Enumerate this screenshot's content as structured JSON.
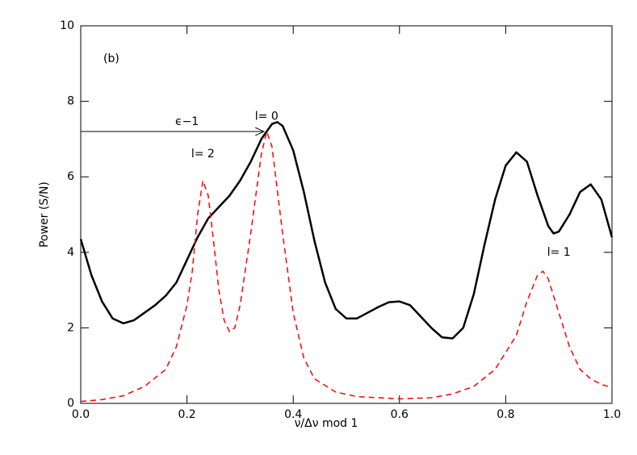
{
  "chart_data": {
    "type": "line",
    "x_label": "ν/Δν mod 1",
    "y_label": "Power (S/N)",
    "panel_label": "(b)",
    "annotations": [
      "ϵ−1",
      "l= 0",
      "l= 2",
      "l= 1"
    ],
    "xlim": [
      0,
      1
    ],
    "ylim": [
      0,
      10
    ],
    "xticks": [
      {
        "value": 0,
        "label": "0.0"
      },
      {
        "value": 0.2,
        "label": "0.2"
      },
      {
        "value": 0.4,
        "label": "0.4"
      },
      {
        "value": 0.6,
        "label": "0.6"
      },
      {
        "value": 0.8,
        "label": "0.8"
      },
      {
        "value": 1,
        "label": "1.0"
      }
    ],
    "yticks": [
      0,
      2,
      4,
      6,
      8,
      10
    ],
    "series": [
      {
        "color": "#000000",
        "style": "solid",
        "x": [
          0,
          0.02,
          0.04,
          0.06,
          0.08,
          0.1,
          0.12,
          0.14,
          0.16,
          0.18,
          0.2,
          0.22,
          0.24,
          0.26,
          0.28,
          0.3,
          0.32,
          0.34,
          0.36,
          0.37,
          0.38,
          0.4,
          0.42,
          0.44,
          0.46,
          0.48,
          0.5,
          0.52,
          0.54,
          0.56,
          0.58,
          0.6,
          0.62,
          0.64,
          0.66,
          0.68,
          0.7,
          0.72,
          0.74,
          0.76,
          0.78,
          0.8,
          0.82,
          0.84,
          0.86,
          0.88,
          0.89,
          0.9,
          0.92,
          0.94,
          0.96,
          0.98,
          1
        ],
        "values": [
          4.35,
          3.4,
          2.7,
          2.25,
          2.12,
          2.2,
          2.4,
          2.6,
          2.85,
          3.2,
          3.8,
          4.4,
          4.9,
          5.2,
          5.5,
          5.9,
          6.4,
          7.0,
          7.4,
          7.45,
          7.35,
          6.7,
          5.6,
          4.3,
          3.2,
          2.5,
          2.25,
          2.25,
          2.4,
          2.55,
          2.68,
          2.7,
          2.6,
          2.3,
          2.0,
          1.75,
          1.72,
          2.0,
          2.9,
          4.2,
          5.4,
          6.3,
          6.65,
          6.4,
          5.5,
          4.7,
          4.5,
          4.55,
          5.0,
          5.6,
          5.8,
          5.4,
          4.4
        ]
      },
      {
        "color": "#ff0000",
        "style": "dashed",
        "x": [
          0,
          0.04,
          0.08,
          0.12,
          0.16,
          0.18,
          0.2,
          0.21,
          0.22,
          0.23,
          0.24,
          0.25,
          0.26,
          0.27,
          0.28,
          0.29,
          0.3,
          0.32,
          0.34,
          0.35,
          0.36,
          0.38,
          0.4,
          0.42,
          0.44,
          0.48,
          0.52,
          0.6,
          0.66,
          0.7,
          0.74,
          0.78,
          0.82,
          0.84,
          0.86,
          0.87,
          0.88,
          0.9,
          0.92,
          0.94,
          0.96,
          0.98,
          1
        ],
        "values": [
          0.05,
          0.1,
          0.2,
          0.45,
          0.9,
          1.5,
          2.6,
          3.5,
          5.0,
          5.9,
          5.5,
          4.3,
          3.0,
          2.2,
          1.9,
          2.0,
          2.6,
          4.5,
          6.6,
          7.2,
          6.8,
          4.5,
          2.4,
          1.2,
          0.65,
          0.3,
          0.18,
          0.12,
          0.15,
          0.25,
          0.45,
          0.9,
          1.8,
          2.7,
          3.4,
          3.5,
          3.3,
          2.4,
          1.5,
          0.9,
          0.65,
          0.5,
          0.42
        ]
      }
    ]
  }
}
